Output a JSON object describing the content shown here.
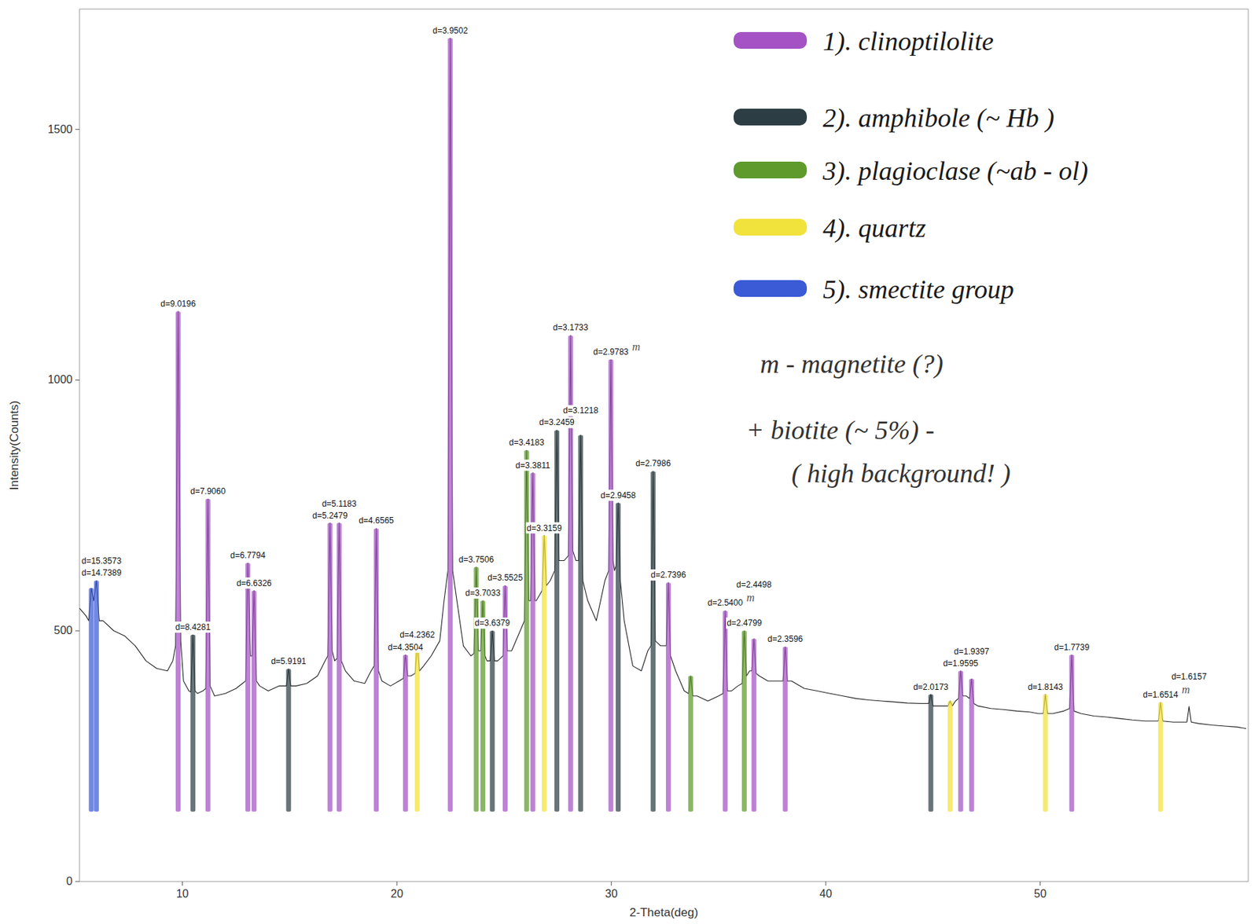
{
  "chart_data": {
    "type": "line",
    "x_label": "2-Theta(deg)",
    "y_label": "Intensity(Counts)",
    "xlim": [
      5.2,
      59.7
    ],
    "ylim": [
      0,
      1740
    ],
    "xticks": [
      10,
      20,
      30,
      40,
      50
    ],
    "yticks": [
      0,
      500,
      1000,
      1500
    ],
    "grid": false,
    "legend": "top-right",
    "x": [
      5.2,
      5.5,
      5.63,
      5.75,
      5.86,
      5.99,
      6.12,
      6.3,
      6.8,
      7.3,
      7.8,
      8.3,
      8.8,
      9.3,
      9.55,
      9.68,
      9.8,
      9.92,
      10.05,
      10.3,
      10.39,
      10.49,
      10.59,
      10.7,
      10.95,
      11.09,
      11.19,
      11.29,
      11.5,
      12.0,
      12.5,
      12.8,
      12.95,
      13.05,
      13.17,
      13.25,
      13.34,
      13.45,
      13.6,
      14.0,
      14.5,
      14.85,
      14.95,
      15.05,
      15.3,
      15.8,
      16.3,
      16.65,
      16.78,
      16.88,
      16.98,
      17.1,
      17.21,
      17.31,
      17.41,
      17.6,
      18.0,
      18.5,
      18.8,
      18.94,
      19.04,
      19.14,
      19.3,
      19.7,
      20.1,
      20.3,
      20.4,
      20.5,
      20.65,
      20.85,
      20.95,
      21.05,
      21.25,
      21.6,
      22.0,
      22.2,
      22.38,
      22.49,
      22.6,
      22.8,
      23.1,
      23.45,
      23.6,
      23.7,
      23.8,
      23.91,
      24.01,
      24.11,
      24.2,
      24.35,
      24.45,
      24.55,
      24.7,
      24.95,
      25.05,
      25.15,
      25.35,
      25.65,
      25.95,
      26.05,
      26.15,
      26.24,
      26.34,
      26.44,
      26.5,
      26.77,
      26.87,
      26.97,
      27.15,
      27.36,
      27.46,
      27.56,
      27.8,
      28.0,
      28.1,
      28.2,
      28.35,
      28.47,
      28.57,
      28.67,
      28.9,
      29.3,
      29.7,
      29.88,
      29.98,
      30.08,
      30.15,
      30.22,
      30.32,
      30.42,
      30.6,
      31.0,
      31.4,
      31.7,
      31.85,
      31.95,
      32.05,
      32.3,
      32.56,
      32.66,
      32.76,
      33.0,
      33.4,
      33.6,
      33.7,
      33.8,
      34.0,
      34.5,
      35.0,
      35.21,
      35.31,
      35.41,
      35.6,
      35.9,
      36.1,
      36.2,
      36.3,
      36.45,
      36.55,
      36.65,
      36.75,
      36.9,
      37.3,
      37.8,
      38.01,
      38.11,
      38.21,
      38.4,
      39.0,
      39.6,
      40.2,
      40.8,
      41.4,
      42.0,
      42.6,
      43.2,
      43.8,
      44.4,
      44.8,
      44.9,
      45.0,
      45.4,
      45.7,
      45.8,
      45.9,
      46.05,
      46.19,
      46.29,
      46.39,
      46.55,
      46.7,
      46.8,
      46.9,
      47.1,
      47.7,
      48.3,
      48.9,
      49.5,
      49.9,
      50.14,
      50.24,
      50.34,
      50.6,
      51.1,
      51.37,
      51.47,
      51.57,
      51.9,
      52.5,
      53.1,
      53.7,
      54.3,
      54.9,
      55.51,
      55.61,
      55.71,
      56.2,
      56.84,
      56.94,
      57.04,
      57.4,
      58.0,
      58.6,
      59.2,
      59.6
    ],
    "series": [
      {
        "color": "#222222",
        "values": [
          545,
          530,
          520,
          585,
          560,
          600,
          520,
          520,
          500,
          490,
          470,
          440,
          425,
          420,
          440,
          470,
          1137,
          480,
          400,
          380,
          378,
          492,
          380,
          375,
          380,
          385,
          763,
          390,
          370,
          375,
          385,
          395,
          400,
          635,
          450,
          450,
          580,
          400,
          390,
          380,
          390,
          390,
          424,
          390,
          390,
          395,
          410,
          440,
          450,
          715,
          460,
          440,
          445,
          715,
          440,
          420,
          400,
          395,
          420,
          430,
          704,
          420,
          400,
          390,
          400,
          405,
          452,
          410,
          410,
          415,
          476,
          420,
          430,
          450,
          480,
          560,
          620,
          1682,
          620,
          560,
          470,
          450,
          455,
          627,
          460,
          460,
          560,
          450,
          440,
          440,
          500,
          440,
          440,
          450,
          590,
          460,
          460,
          490,
          520,
          860,
          560,
          560,
          815,
          560,
          560,
          580,
          690,
          590,
          600,
          620,
          900,
          640,
          640,
          650,
          1089,
          660,
          640,
          640,
          890,
          600,
          560,
          520,
          600,
          620,
          1041,
          640,
          620,
          630,
          755,
          600,
          520,
          430,
          420,
          460,
          470,
          818,
          480,
          470,
          470,
          596,
          450,
          420,
          380,
          375,
          410,
          370,
          370,
          360,
          370,
          375,
          540,
          380,
          380,
          390,
          395,
          500,
          410,
          420,
          420,
          484,
          415,
          410,
          400,
          400,
          400,
          468,
          400,
          400,
          385,
          380,
          375,
          370,
          365,
          362,
          360,
          358,
          356,
          355,
          355,
          373,
          350,
          350,
          350,
          360,
          350,
          360,
          365,
          420,
          370,
          370,
          365,
          404,
          355,
          350,
          345,
          343,
          340,
          338,
          335,
          335,
          373,
          335,
          335,
          340,
          345,
          452,
          340,
          335,
          330,
          328,
          325,
          322,
          320,
          320,
          357,
          320,
          318,
          318,
          349,
          318,
          315,
          312,
          310,
          308,
          305
        ]
      }
    ],
    "phases": [
      {
        "name": "1). clinoptilolite",
        "color": "#a452c4"
      },
      {
        "name": "2). amphibole (~ Hb )",
        "color": "#2c3e44"
      },
      {
        "name": "3). plagioclase (~ab - ol)",
        "color": "#5e9a2c"
      },
      {
        "name": "4). quartz",
        "color": "#f2e23c"
      },
      {
        "name": "5). smectite group",
        "color": "#3a5ad6"
      }
    ],
    "notes": [
      "m - magnetite (?)",
      "+ biotite (~ 5%) -",
      "( high background! )"
    ],
    "peaks": [
      {
        "x": 5.75,
        "value": 585,
        "label": "d=15.3573",
        "phase": 5
      },
      {
        "x": 5.99,
        "value": 600,
        "label": "d=14.7389",
        "phase": 5
      },
      {
        "x": 9.8,
        "value": 1137,
        "label": "d=9.0196",
        "phase": 1
      },
      {
        "x": 10.49,
        "value": 492,
        "label": "d=8.4281",
        "phase": 2
      },
      {
        "x": 11.19,
        "value": 763,
        "label": "d=7.9060",
        "phase": 1
      },
      {
        "x": 13.05,
        "value": 635,
        "label": "d=6.7794",
        "phase": 1
      },
      {
        "x": 13.34,
        "value": 580,
        "label": "d=6.6326",
        "phase": 1
      },
      {
        "x": 14.95,
        "value": 424,
        "label": "d=5.9191",
        "phase": 2
      },
      {
        "x": 16.88,
        "value": 715,
        "label": "d=5.2479",
        "phase": 1
      },
      {
        "x": 17.31,
        "value": 715,
        "label": "d=5.1183",
        "phase": 1
      },
      {
        "x": 19.04,
        "value": 704,
        "label": "d=4.6565",
        "phase": 1
      },
      {
        "x": 20.4,
        "value": 452,
        "label": "d=4.3504",
        "phase": 1
      },
      {
        "x": 20.95,
        "value": 476,
        "label": "d=4.2362",
        "phase": 4
      },
      {
        "x": 22.49,
        "value": 1682,
        "label": "d=3.9502",
        "phase": 1
      },
      {
        "x": 23.7,
        "value": 627,
        "label": "d=3.7506",
        "phase": 3
      },
      {
        "x": 24.01,
        "value": 560,
        "label": "d=3.7033",
        "phase": 3
      },
      {
        "x": 24.45,
        "value": 500,
        "label": "d=3.6379",
        "phase": 2
      },
      {
        "x": 25.05,
        "value": 590,
        "label": "d=3.5525",
        "phase": 1
      },
      {
        "x": 26.05,
        "value": 860,
        "label": "d=3.4183",
        "phase": 3
      },
      {
        "x": 26.34,
        "value": 815,
        "label": "d=3.3811",
        "phase": 1
      },
      {
        "x": 26.87,
        "value": 690,
        "label": "d=3.3159",
        "phase": 4
      },
      {
        "x": 27.46,
        "value": 900,
        "label": "d=3.2459",
        "phase": 2
      },
      {
        "x": 28.1,
        "value": 1089,
        "label": "d=3.1733",
        "phase": 1
      },
      {
        "x": 28.57,
        "value": 890,
        "label": "d=3.1218",
        "phase": 2
      },
      {
        "x": 29.98,
        "value": 1041,
        "label": "d=2.9783",
        "phase": 1,
        "note": "m"
      },
      {
        "x": 30.32,
        "value": 755,
        "label": "d=2.9458",
        "phase": 2
      },
      {
        "x": 31.95,
        "value": 818,
        "label": "d=2.7986",
        "phase": 2
      },
      {
        "x": 32.66,
        "value": 596,
        "label": "d=2.7396",
        "phase": 1
      },
      {
        "x": 33.7,
        "value": 410,
        "phase": 3
      },
      {
        "x": 35.31,
        "value": 540,
        "label": "d=2.5400",
        "phase": 1,
        "note": "m"
      },
      {
        "x": 36.2,
        "value": 500,
        "label": "d=2.4799",
        "phase": 3
      },
      {
        "x": 36.65,
        "value": 484,
        "label": "d=2.4498",
        "phase": 1
      },
      {
        "x": 38.11,
        "value": 468,
        "label": "d=2.3596",
        "phase": 1
      },
      {
        "x": 44.9,
        "value": 373,
        "label": "d=2.0173",
        "phase": 2
      },
      {
        "x": 45.8,
        "value": 360,
        "phase": 4
      },
      {
        "x": 46.29,
        "value": 420,
        "label": "d=1.9595",
        "phase": 1
      },
      {
        "x": 46.8,
        "value": 404,
        "label": "d=1.9397",
        "phase": 1
      },
      {
        "x": 50.24,
        "value": 373,
        "label": "d=1.8143",
        "phase": 4
      },
      {
        "x": 51.47,
        "value": 452,
        "label": "d=1.7739",
        "phase": 1
      },
      {
        "x": 55.61,
        "value": 357,
        "label": "d=1.6514",
        "phase": 4,
        "note": "m"
      },
      {
        "x": 56.94,
        "value": 349,
        "label": "d=1.6157"
      }
    ]
  }
}
